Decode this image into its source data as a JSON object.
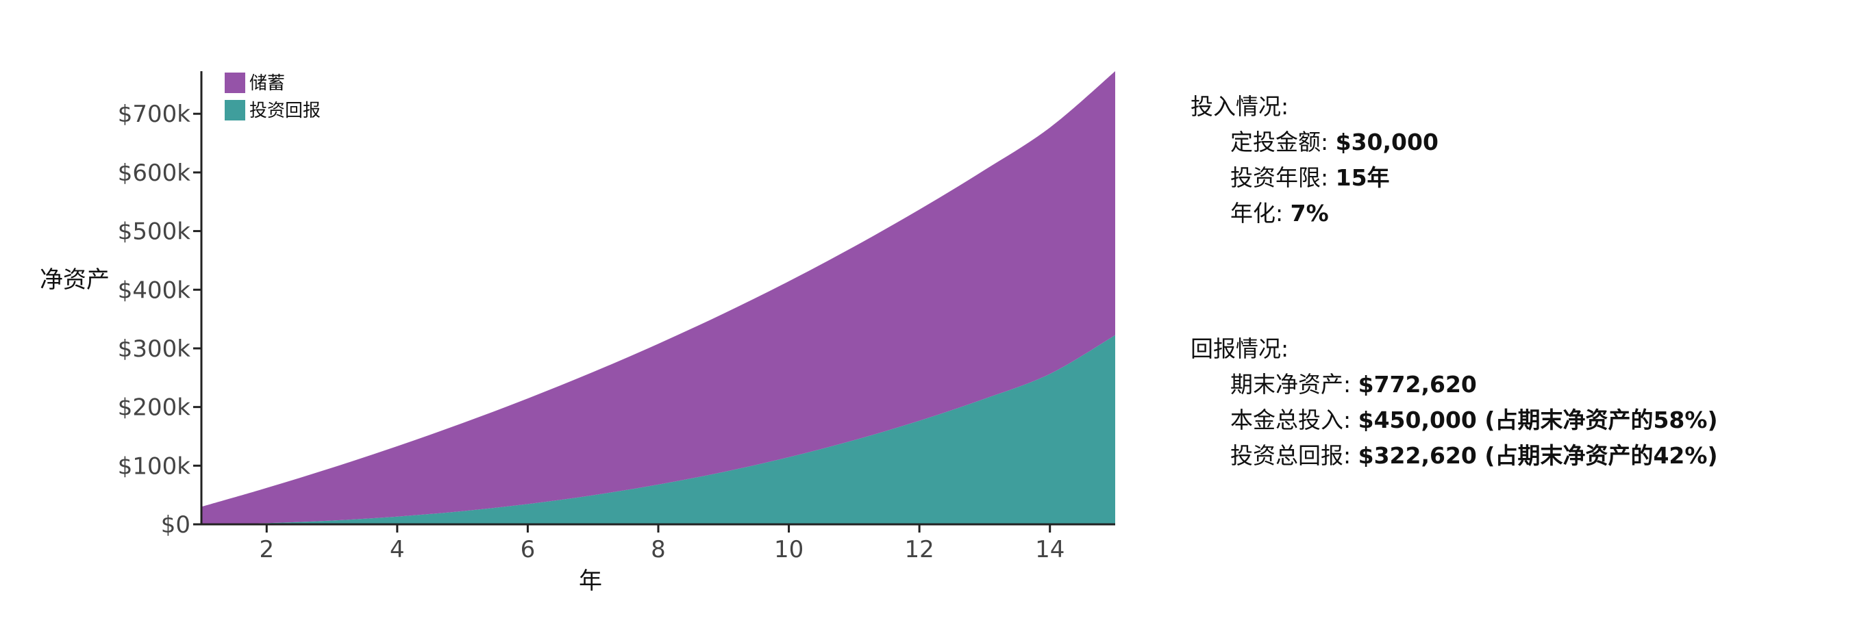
{
  "chart_data": {
    "type": "area",
    "stacked": true,
    "xlabel": "年",
    "ylabel": "净资产",
    "xlim": [
      1,
      15
    ],
    "ylim": [
      0,
      772620
    ],
    "x_ticks": [
      2,
      4,
      6,
      8,
      10,
      12,
      14
    ],
    "y_ticks": [
      0,
      100000,
      200000,
      300000,
      400000,
      500000,
      600000,
      700000
    ],
    "y_tick_labels": [
      "$0",
      "$100k",
      "$200k",
      "$300k",
      "$400k",
      "$500k",
      "$600k",
      "$700k"
    ],
    "legend_position": "top-left",
    "x": [
      1,
      2,
      3,
      4,
      5,
      6,
      7,
      8,
      9,
      10,
      11,
      12,
      13,
      14,
      15
    ],
    "series": [
      {
        "name": "投资回报",
        "color": "#3f9e9c",
        "values": [
          0,
          2100,
          6447,
          13198,
          22520,
          34596,
          49618,
          67791,
          89337,
          114491,
          143506,
          176651,
          214217,
          256513,
          322620
        ]
      },
      {
        "name": "储蓄",
        "color": "#9553a8",
        "values": [
          30000,
          60000,
          90000,
          120000,
          150000,
          180000,
          210000,
          240000,
          270000,
          300000,
          330000,
          360000,
          390000,
          420000,
          450000
        ]
      }
    ],
    "legend_order": [
      "储蓄",
      "投资回报"
    ]
  },
  "inputs": {
    "title": "投入情况:",
    "monthly_label": "定投金额:",
    "monthly_value": "$30,000",
    "years_label": "投资年限:",
    "years_value": "15年",
    "rate_label": "年化:",
    "rate_value": "7%"
  },
  "returns": {
    "title": "回报情况:",
    "networth_label": "期末净资产:",
    "networth_value": "$772,620",
    "principal_label": "本金总投入:",
    "principal_value": "$450,000 (占期末净资产的58%)",
    "gain_label": "投资总回报:",
    "gain_value": "$322,620 (占期末净资产的42%)"
  }
}
